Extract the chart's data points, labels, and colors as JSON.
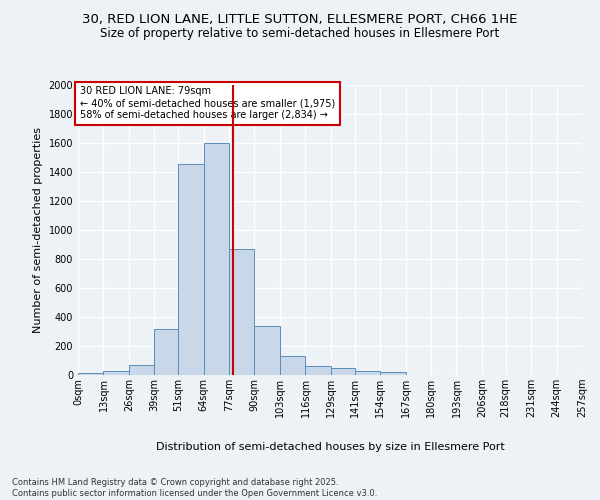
{
  "title_line1": "30, RED LION LANE, LITTLE SUTTON, ELLESMERE PORT, CH66 1HE",
  "title_line2": "Size of property relative to semi-detached houses in Ellesmere Port",
  "xlabel": "Distribution of semi-detached houses by size in Ellesmere Port",
  "ylabel": "Number of semi-detached properties",
  "bin_labels": [
    "0sqm",
    "13sqm",
    "26sqm",
    "39sqm",
    "51sqm",
    "64sqm",
    "77sqm",
    "90sqm",
    "103sqm",
    "116sqm",
    "129sqm",
    "141sqm",
    "154sqm",
    "167sqm",
    "180sqm",
    "193sqm",
    "206sqm",
    "218sqm",
    "231sqm",
    "244sqm",
    "257sqm"
  ],
  "bin_edges": [
    0,
    13,
    26,
    39,
    51,
    64,
    77,
    90,
    103,
    116,
    129,
    141,
    154,
    167,
    180,
    193,
    206,
    218,
    231,
    244,
    257
  ],
  "bar_heights": [
    15,
    30,
    70,
    320,
    1455,
    1600,
    870,
    340,
    130,
    60,
    45,
    30,
    20,
    0,
    0,
    0,
    0,
    0,
    0,
    0
  ],
  "bar_color": "#c8d8e8",
  "bar_edge_color": "#5b8db8",
  "vline_x": 79,
  "vline_color": "#cc0000",
  "annotation_text": "30 RED LION LANE: 79sqm\n← 40% of semi-detached houses are smaller (1,975)\n58% of semi-detached houses are larger (2,834) →",
  "annotation_box_color": "#ffffff",
  "annotation_box_edge": "#cc0000",
  "ylim": [
    0,
    2000
  ],
  "yticks": [
    0,
    200,
    400,
    600,
    800,
    1000,
    1200,
    1400,
    1600,
    1800,
    2000
  ],
  "bg_color": "#edf2f7",
  "grid_color": "#ffffff",
  "footer_text": "Contains HM Land Registry data © Crown copyright and database right 2025.\nContains public sector information licensed under the Open Government Licence v3.0.",
  "title_fontsize": 9.5,
  "subtitle_fontsize": 8.5,
  "axis_label_fontsize": 8,
  "tick_fontsize": 7,
  "annotation_fontsize": 7,
  "footer_fontsize": 6
}
